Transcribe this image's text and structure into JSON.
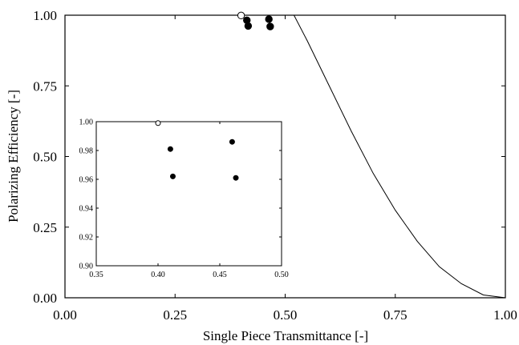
{
  "chart_data": [
    {
      "type": "scatter",
      "title": "",
      "xlabel": "Single Piece Transmittance [-]",
      "ylabel": "Polarizing Efficiency [-]",
      "xlim": [
        0,
        1
      ],
      "ylim": [
        0,
        1
      ],
      "xticks": [
        "0.00",
        "0.25",
        "0.50",
        "0.75",
        "1.00"
      ],
      "yticks": [
        "0.00",
        "0.25",
        "0.50",
        "0.75",
        "1.00"
      ],
      "grid": false,
      "series": [
        {
          "marker": "open-circle",
          "x": [
            0.4
          ],
          "y": [
            0.999
          ]
        },
        {
          "marker": "filled-circle",
          "x": [
            0.413,
            0.416,
            0.463,
            0.466
          ],
          "y": [
            0.982,
            0.962,
            0.986,
            0.96
          ]
        },
        {
          "marker": "line",
          "x": [
            0,
            0.05,
            0.1,
            0.15,
            0.2,
            0.25,
            0.3,
            0.35,
            0.4,
            0.45,
            0.5,
            0.52,
            0.55,
            0.6,
            0.65,
            0.7,
            0.75,
            0.8,
            0.85,
            0.9,
            0.95,
            1.0
          ],
          "y": [
            1,
            1,
            1,
            1,
            1,
            1,
            1,
            1,
            1,
            1,
            1,
            1,
            0.91,
            0.75,
            0.59,
            0.44,
            0.31,
            0.2,
            0.11,
            0.05,
            0.01,
            0
          ]
        }
      ]
    },
    {
      "type": "scatter",
      "title": "",
      "xlabel": "",
      "ylabel": "",
      "xlim": [
        0.35,
        0.5
      ],
      "ylim": [
        0.9,
        1.0
      ],
      "xticks": [
        "0.35",
        "0.40",
        "0.45",
        "0.50"
      ],
      "yticks": [
        "0.90",
        "0.92",
        "0.94",
        "0.96",
        "0.98",
        "1.00"
      ],
      "grid": false,
      "series": [
        {
          "marker": "open-circle",
          "x": [
            0.4
          ],
          "y": [
            0.999
          ]
        },
        {
          "marker": "filled-circle",
          "x": [
            0.41,
            0.412,
            0.46,
            0.463
          ],
          "y": [
            0.981,
            0.962,
            0.986,
            0.961
          ]
        }
      ]
    }
  ]
}
